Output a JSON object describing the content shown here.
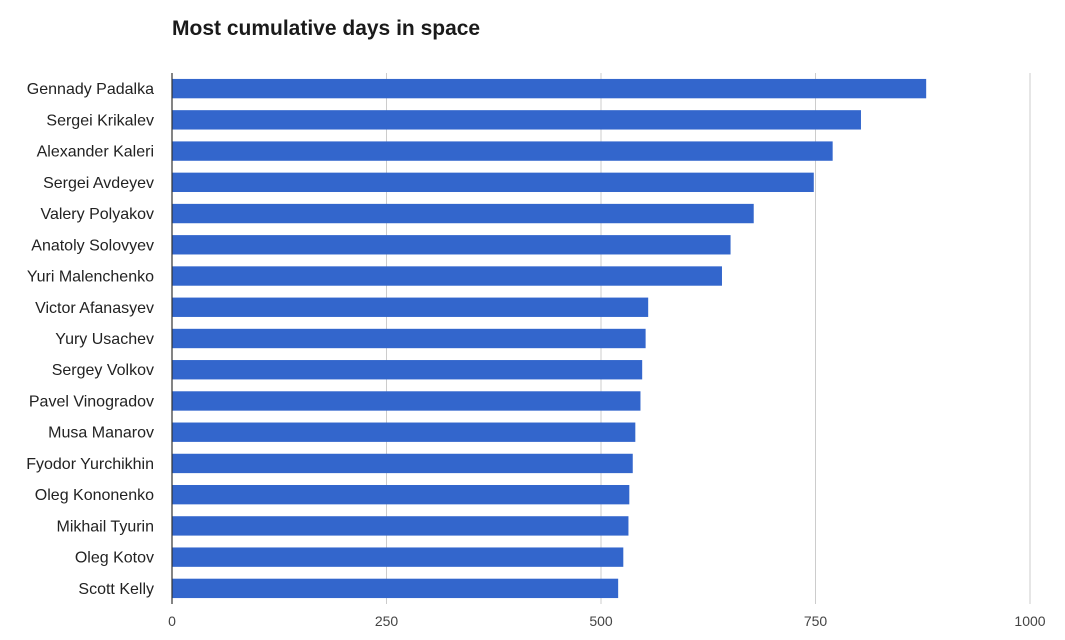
{
  "chart_data": {
    "type": "bar",
    "orientation": "horizontal",
    "title": "Most cumulative days in space",
    "xlabel": "",
    "ylabel": "",
    "categories": [
      "Gennady Padalka",
      "Sergei Krikalev",
      "Alexander Kaleri",
      "Sergei Avdeyev",
      "Valery Polyakov",
      "Anatoly Solovyev",
      "Yuri Malenchenko",
      "Victor Afanasyev",
      "Yury Usachev",
      "Sergey Volkov",
      "Pavel Vinogradov",
      "Musa Manarov",
      "Fyodor Yurchikhin",
      "Oleg Kononenko",
      "Mikhail Tyurin",
      "Oleg Kotov",
      "Scott Kelly"
    ],
    "values": [
      879,
      803,
      770,
      748,
      678,
      651,
      641,
      555,
      552,
      548,
      546,
      540,
      537,
      533,
      532,
      526,
      520
    ],
    "xlim": [
      0,
      1000
    ],
    "xticks": [
      "0",
      "250",
      "500",
      "750",
      "1000"
    ],
    "grid": true,
    "legend": "none",
    "colors": {
      "bar": "#3366cc",
      "grid": "#cccccc",
      "axis": "#333333"
    }
  }
}
